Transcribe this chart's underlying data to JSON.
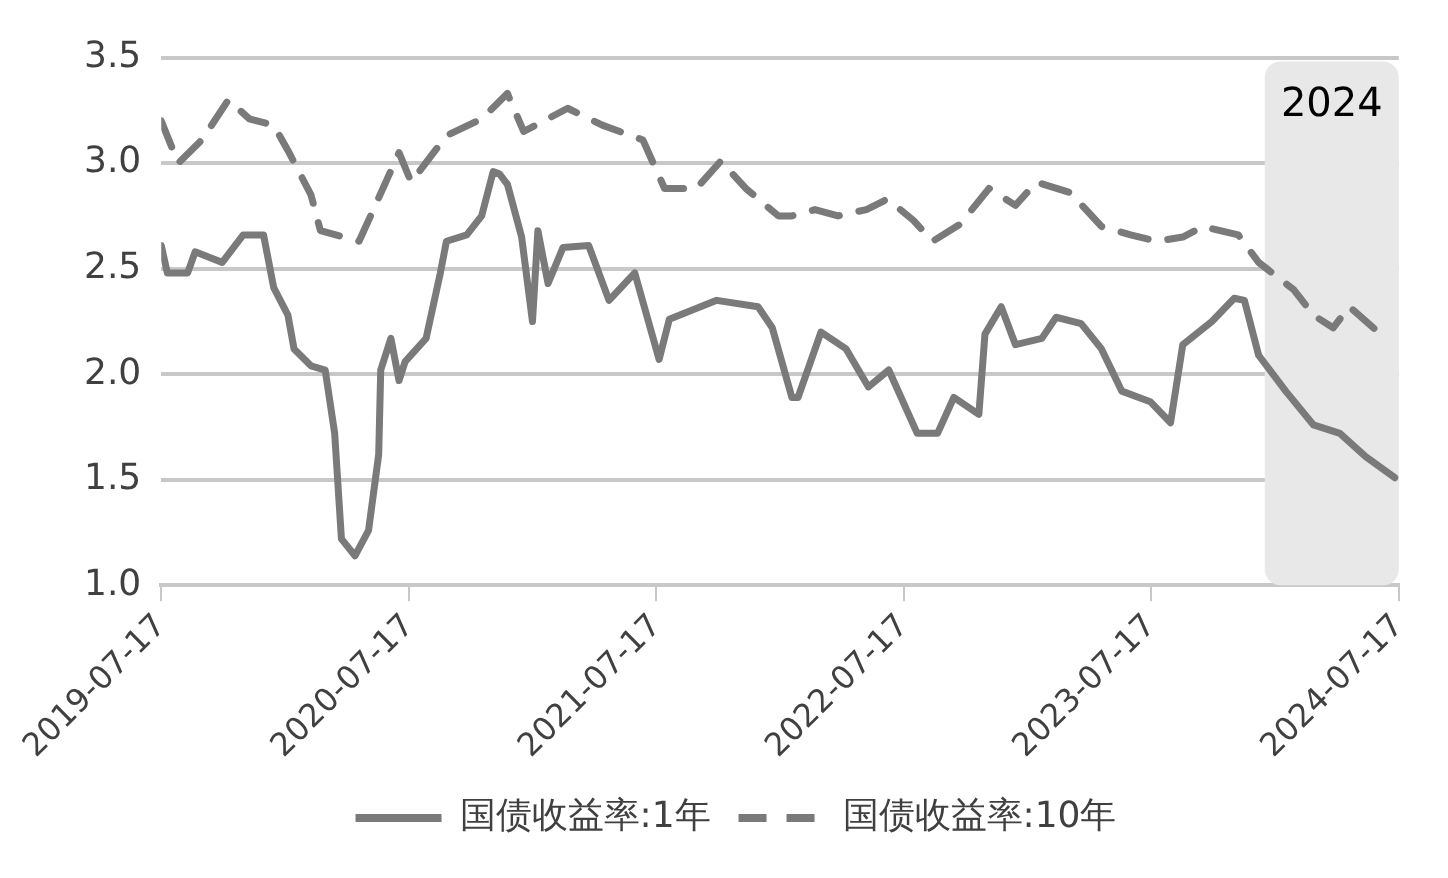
{
  "chart_data": {
    "type": "line",
    "xlim": [
      "2019-07-17",
      "2024-07-17"
    ],
    "xticks": [
      "2019-07-17",
      "2020-07-17",
      "2021-07-17",
      "2022-07-17",
      "2023-07-17",
      "2024-07-17"
    ],
    "ylim": [
      1.0,
      3.5
    ],
    "yticks": [
      {
        "value": 1.0,
        "label": "1.0"
      },
      {
        "value": 1.5,
        "label": "1.5"
      },
      {
        "value": 2.0,
        "label": "2.0"
      },
      {
        "value": 2.5,
        "label": "2.5"
      },
      {
        "value": 3.0,
        "label": "3.0"
      },
      {
        "value": 3.5,
        "label": "3.5"
      }
    ],
    "grid": "y",
    "legend": "bottom",
    "marker": "none",
    "bands": [
      {
        "axis": "x",
        "from": "2024-01-01",
        "to": "2024-07-17",
        "label": "2024",
        "color": "#e8e8e8"
      }
    ],
    "series": [
      {
        "name": "国债收益率:1年",
        "color": "#7a7a7a",
        "line_style": "solid",
        "x": [
          "2019-07-17",
          "2019-07-26",
          "2019-08-25",
          "2019-09-05",
          "2019-10-15",
          "2019-11-15",
          "2019-12-15",
          "2019-12-30",
          "2020-01-20",
          "2020-01-29",
          "2020-02-23",
          "2020-03-15",
          "2020-03-29",
          "2020-04-08",
          "2020-04-28",
          "2020-05-18",
          "2020-06-02",
          "2020-06-05",
          "2020-06-20",
          "2020-07-02",
          "2020-07-11",
          "2020-08-11",
          "2020-09-01",
          "2020-09-10",
          "2020-10-10",
          "2020-11-01",
          "2020-11-18",
          "2020-11-27",
          "2020-12-09",
          "2020-12-30",
          "2021-01-15",
          "2021-01-23",
          "2021-02-07",
          "2021-03-01",
          "2021-04-08",
          "2021-05-08",
          "2021-06-15",
          "2021-07-21",
          "2021-08-05",
          "2021-10-14",
          "2021-12-14",
          "2022-01-04",
          "2022-02-02",
          "2022-02-11",
          "2022-03-17",
          "2022-04-23",
          "2022-05-26",
          "2022-06-25",
          "2022-08-06",
          "2022-09-05",
          "2022-09-29",
          "2022-11-05",
          "2022-11-14",
          "2022-12-08",
          "2022-12-29",
          "2023-02-06",
          "2023-02-27",
          "2023-04-05",
          "2023-05-05",
          "2023-06-04",
          "2023-07-16",
          "2023-08-15",
          "2023-09-02",
          "2023-10-15",
          "2023-11-17",
          "2023-12-02",
          "2023-12-23",
          "2024-02-01",
          "2024-03-13",
          "2024-04-21",
          "2024-05-29",
          "2024-07-11"
        ],
        "values": [
          2.61,
          2.48,
          2.48,
          2.58,
          2.53,
          2.66,
          2.66,
          2.41,
          2.28,
          2.12,
          2.04,
          2.02,
          1.72,
          1.22,
          1.14,
          1.26,
          1.62,
          2.02,
          2.17,
          1.97,
          2.06,
          2.17,
          2.48,
          2.63,
          2.66,
          2.75,
          2.96,
          2.95,
          2.9,
          2.65,
          2.25,
          2.68,
          2.43,
          2.6,
          2.61,
          2.35,
          2.48,
          2.07,
          2.26,
          2.35,
          2.32,
          2.22,
          1.89,
          1.89,
          2.2,
          2.12,
          1.94,
          2.02,
          1.72,
          1.72,
          1.89,
          1.81,
          2.19,
          2.32,
          2.14,
          2.17,
          2.27,
          2.24,
          2.12,
          1.92,
          1.87,
          1.77,
          2.14,
          2.25,
          2.36,
          2.35,
          2.09,
          1.92,
          1.76,
          1.72,
          1.61,
          1.51
        ]
      },
      {
        "name": "国债收益率:10年",
        "color": "#7a7a7a",
        "line_style": "dashed",
        "x": [
          "2019-07-17",
          "2019-08-11",
          "2019-09-15",
          "2019-10-24",
          "2019-11-24",
          "2019-12-30",
          "2020-01-20",
          "2020-02-23",
          "2020-03-08",
          "2020-05-04",
          "2020-05-21",
          "2020-07-02",
          "2020-07-20",
          "2020-09-10",
          "2020-11-01",
          "2020-12-09",
          "2021-01-02",
          "2021-03-08",
          "2021-04-28",
          "2021-06-27",
          "2021-07-29",
          "2021-09-14",
          "2021-10-20",
          "2021-11-26",
          "2022-01-13",
          "2022-02-02",
          "2022-03-08",
          "2022-04-11",
          "2022-05-23",
          "2022-06-23",
          "2022-07-31",
          "2022-08-29",
          "2022-10-08",
          "2022-11-20",
          "2022-12-29",
          "2023-01-29",
          "2023-03-20",
          "2023-05-05",
          "2023-06-17",
          "2023-07-26",
          "2023-09-02",
          "2023-10-02",
          "2023-11-23",
          "2023-12-23",
          "2024-02-13",
          "2024-03-13",
          "2024-04-11",
          "2024-05-05",
          "2024-06-20"
        ],
        "values": [
          3.2,
          3.0,
          3.11,
          3.3,
          3.21,
          3.18,
          3.06,
          2.85,
          2.68,
          2.63,
          2.75,
          3.05,
          2.91,
          3.13,
          3.21,
          3.33,
          3.15,
          3.26,
          3.18,
          3.11,
          2.88,
          2.88,
          3.01,
          2.88,
          2.75,
          2.75,
          2.78,
          2.75,
          2.78,
          2.83,
          2.73,
          2.63,
          2.71,
          2.88,
          2.8,
          2.91,
          2.86,
          2.7,
          2.66,
          2.63,
          2.65,
          2.7,
          2.66,
          2.53,
          2.4,
          2.28,
          2.22,
          2.32,
          2.19
        ]
      }
    ]
  }
}
